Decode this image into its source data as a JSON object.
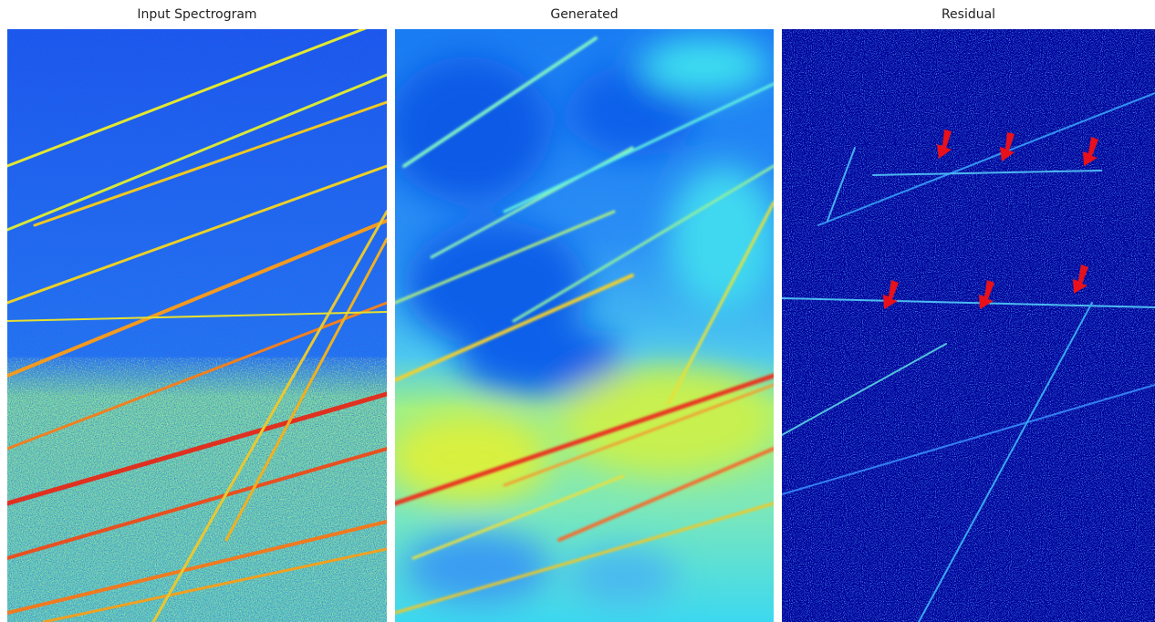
{
  "panels": [
    {
      "title": "Input Spectrogram",
      "style": "noisy-jet-spectrogram"
    },
    {
      "title": "Generated",
      "style": "smooth-jet-spectrogram"
    },
    {
      "title": "Residual",
      "style": "dark-blue-residual"
    }
  ],
  "annotations": {
    "residual_arrow_count": 6,
    "arrow_color": "#e8101a"
  },
  "colors": {
    "jet_dark_blue": "#00008f",
    "jet_blue": "#0050ff",
    "jet_cyan": "#23e6ff",
    "jet_yellow": "#e6f028",
    "jet_red": "#e6281e"
  }
}
